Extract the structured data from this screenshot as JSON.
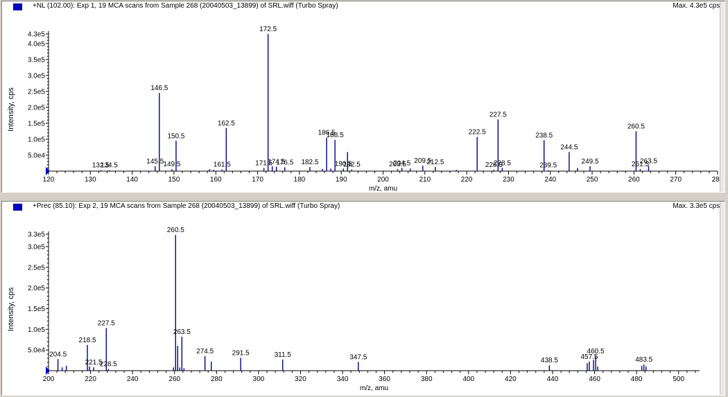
{
  "panels": [
    {
      "id": "p1",
      "header": "+NL (102.00): Exp 1, 19 MCA scans from Sample 268 (20040503_13899) of SRL.wiff (Turbo Spray)",
      "max_label": "Max. 4.3e5 cps.",
      "chart_data": {
        "type": "bar",
        "xlabel": "m/z, amu",
        "ylabel": "Intensity, cps",
        "xlim": [
          120,
          280
        ],
        "ylim": [
          0,
          430000
        ],
        "x_ticks": [
          120,
          130,
          140,
          150,
          160,
          170,
          180,
          190,
          200,
          210,
          220,
          230,
          240,
          250,
          260,
          270,
          280
        ],
        "y_ticks": [
          {
            "v": 50000,
            "label": "5.0e4"
          },
          {
            "v": 100000,
            "label": "1.0e5"
          },
          {
            "v": 150000,
            "label": "1.5e5"
          },
          {
            "v": 200000,
            "label": "2.0e5"
          },
          {
            "v": 250000,
            "label": "2.5e5"
          },
          {
            "v": 300000,
            "label": "3.0e5"
          },
          {
            "v": 350000,
            "label": "3.5e5"
          },
          {
            "v": 400000,
            "label": "4.0e5"
          },
          {
            "v": 430000,
            "label": "4.3e5"
          }
        ],
        "peaks": [
          {
            "x": 132.5,
            "y": 3000,
            "label": "132.5"
          },
          {
            "x": 134.5,
            "y": 3000,
            "label": "134.5"
          },
          {
            "x": 145.5,
            "y": 15000,
            "label": "145.5"
          },
          {
            "x": 146.5,
            "y": 245000,
            "label": "146.5"
          },
          {
            "x": 149.5,
            "y": 6000,
            "label": "149.5"
          },
          {
            "x": 150.5,
            "y": 95000,
            "label": "150.5"
          },
          {
            "x": 158.5,
            "y": 6000
          },
          {
            "x": 159.5,
            "y": 4000
          },
          {
            "x": 161.5,
            "y": 5000,
            "label": "161.5"
          },
          {
            "x": 162.5,
            "y": 135000,
            "label": "162.5"
          },
          {
            "x": 171.5,
            "y": 10000,
            "label": "171.5"
          },
          {
            "x": 172.5,
            "y": 430000,
            "label": "172.5"
          },
          {
            "x": 173.5,
            "y": 15000
          },
          {
            "x": 174.5,
            "y": 14000,
            "label": "174.5"
          },
          {
            "x": 176.5,
            "y": 12000,
            "label": "176.5"
          },
          {
            "x": 182.5,
            "y": 13000,
            "label": "182.5"
          },
          {
            "x": 185.5,
            "y": 7000
          },
          {
            "x": 186.5,
            "y": 105000,
            "label": "186.5"
          },
          {
            "x": 187.5,
            "y": 8000
          },
          {
            "x": 188.5,
            "y": 98000,
            "label": "188.5"
          },
          {
            "x": 190.5,
            "y": 8000,
            "label": "190.5"
          },
          {
            "x": 191.5,
            "y": 60000
          },
          {
            "x": 192.5,
            "y": 5000,
            "label": "192.5"
          },
          {
            "x": 203.5,
            "y": 6000,
            "label": "203.5"
          },
          {
            "x": 204.5,
            "y": 10000,
            "label": "204.5"
          },
          {
            "x": 206.5,
            "y": 8000
          },
          {
            "x": 209.5,
            "y": 17000,
            "label": "209.5"
          },
          {
            "x": 212.5,
            "y": 13000,
            "label": "212.5"
          },
          {
            "x": 217.5,
            "y": 4000
          },
          {
            "x": 222.5,
            "y": 107000,
            "label": "222.5"
          },
          {
            "x": 226.5,
            "y": 4000,
            "label": "226.5"
          },
          {
            "x": 227.5,
            "y": 162000,
            "label": "227.5"
          },
          {
            "x": 228.5,
            "y": 10000,
            "label": "228.5"
          },
          {
            "x": 238.5,
            "y": 97000,
            "label": "238.5"
          },
          {
            "x": 239.5,
            "y": 3000,
            "label": "239.5"
          },
          {
            "x": 244.5,
            "y": 60000,
            "label": "244.5"
          },
          {
            "x": 246.5,
            "y": 10000
          },
          {
            "x": 249.5,
            "y": 15000,
            "label": "249.5"
          },
          {
            "x": 260.5,
            "y": 125000,
            "label": "260.5"
          },
          {
            "x": 261.5,
            "y": 6000,
            "label": "261.5"
          },
          {
            "x": 263.5,
            "y": 16000,
            "label": "263.5"
          }
        ]
      }
    },
    {
      "id": "p2",
      "header": "+Prec (85.10): Exp 2, 19 MCA scans from Sample 268 (20040503_13899) of SRL.wiff (Turbo Spray)",
      "max_label": "Max. 3.3e5 cps.",
      "chart_data": {
        "type": "bar",
        "xlabel": "m/z, amu",
        "ylabel": "Intensity, cps",
        "xlim": [
          200,
          510
        ],
        "ylim": [
          0,
          330000
        ],
        "x_ticks": [
          200,
          220,
          240,
          260,
          280,
          300,
          320,
          340,
          360,
          380,
          400,
          420,
          440,
          460,
          480,
          500
        ],
        "y_ticks": [
          {
            "v": 50000,
            "label": "5.0e4"
          },
          {
            "v": 100000,
            "label": "1.0e5"
          },
          {
            "v": 150000,
            "label": "1.5e5"
          },
          {
            "v": 200000,
            "label": "2.0e5"
          },
          {
            "v": 250000,
            "label": "2.5e5"
          },
          {
            "v": 300000,
            "label": "3.0e5"
          },
          {
            "v": 330000,
            "label": "3.3e5"
          }
        ],
        "peaks": [
          {
            "x": 204.5,
            "y": 28000,
            "label": "204.5"
          },
          {
            "x": 206.5,
            "y": 8000
          },
          {
            "x": 208.5,
            "y": 12000
          },
          {
            "x": 218.5,
            "y": 62000,
            "label": "218.5"
          },
          {
            "x": 219.5,
            "y": 10000
          },
          {
            "x": 221.5,
            "y": 8000,
            "label": "221.5"
          },
          {
            "x": 227.5,
            "y": 103000,
            "label": "227.5"
          },
          {
            "x": 228.5,
            "y": 4000,
            "label": "228.5"
          },
          {
            "x": 259.5,
            "y": 8000
          },
          {
            "x": 260.5,
            "y": 328000,
            "label": "260.5"
          },
          {
            "x": 261.5,
            "y": 60000
          },
          {
            "x": 262.5,
            "y": 8000
          },
          {
            "x": 263.5,
            "y": 82000,
            "label": "263.5"
          },
          {
            "x": 264.5,
            "y": 6000
          },
          {
            "x": 274.5,
            "y": 35000,
            "label": "274.5"
          },
          {
            "x": 277.5,
            "y": 22000
          },
          {
            "x": 291.5,
            "y": 31000,
            "label": "291.5"
          },
          {
            "x": 311.5,
            "y": 27000,
            "label": "311.5"
          },
          {
            "x": 347.5,
            "y": 21000,
            "label": "347.5"
          },
          {
            "x": 438.5,
            "y": 13000,
            "label": "438.5"
          },
          {
            "x": 456.5,
            "y": 18000
          },
          {
            "x": 457.5,
            "y": 22000,
            "label": "457.5"
          },
          {
            "x": 459.5,
            "y": 26000
          },
          {
            "x": 460.5,
            "y": 35000,
            "label": "460.5"
          },
          {
            "x": 461.5,
            "y": 10000
          },
          {
            "x": 482.5,
            "y": 12000
          },
          {
            "x": 483.5,
            "y": 15000,
            "label": "483.5"
          },
          {
            "x": 484.5,
            "y": 10000
          }
        ]
      }
    }
  ],
  "colors": {
    "peak": "#000080",
    "axis": "#000000",
    "marker": "#0000c8",
    "label": "#000000"
  }
}
